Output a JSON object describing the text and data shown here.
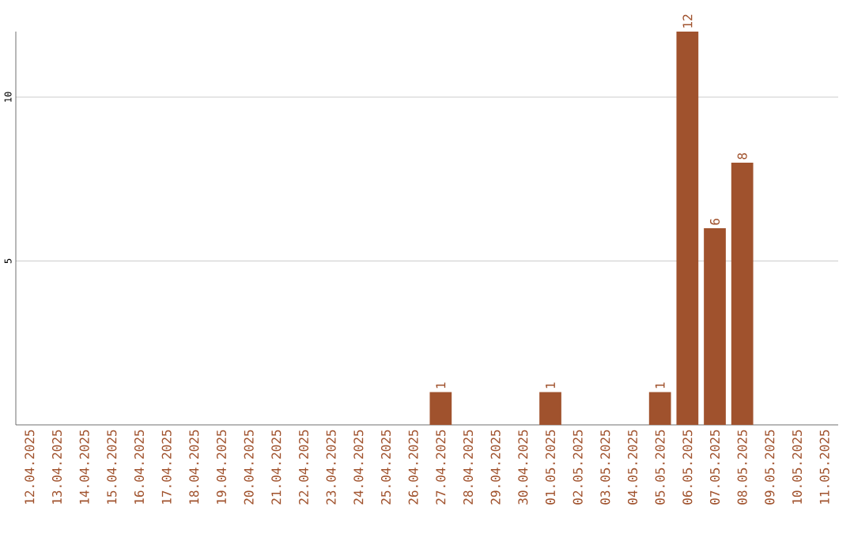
{
  "chart_data": {
    "type": "bar",
    "categories": [
      "12.04.2025",
      "13.04.2025",
      "14.04.2025",
      "15.04.2025",
      "16.04.2025",
      "17.04.2025",
      "18.04.2025",
      "19.04.2025",
      "20.04.2025",
      "21.04.2025",
      "22.04.2025",
      "23.04.2025",
      "24.04.2025",
      "25.04.2025",
      "26.04.2025",
      "27.04.2025",
      "28.04.2025",
      "29.04.2025",
      "30.04.2025",
      "01.05.2025",
      "02.05.2025",
      "03.05.2025",
      "04.05.2025",
      "05.05.2025",
      "06.05.2025",
      "07.05.2025",
      "08.05.2025",
      "09.05.2025",
      "10.05.2025",
      "11.05.2025"
    ],
    "values": [
      0,
      0,
      0,
      0,
      0,
      0,
      0,
      0,
      0,
      0,
      0,
      0,
      0,
      0,
      0,
      1,
      0,
      0,
      0,
      1,
      0,
      0,
      0,
      1,
      12,
      6,
      8,
      0,
      0,
      0
    ],
    "value_labels": [
      null,
      null,
      null,
      null,
      null,
      null,
      null,
      null,
      null,
      null,
      null,
      null,
      null,
      null,
      null,
      "1",
      null,
      null,
      null,
      "1",
      null,
      null,
      null,
      "1",
      "12",
      "6",
      "8",
      null,
      null,
      null
    ],
    "color": "#a0522d",
    "ylim": [
      0,
      12
    ],
    "yticks": [
      5,
      10
    ],
    "grid": "y"
  }
}
